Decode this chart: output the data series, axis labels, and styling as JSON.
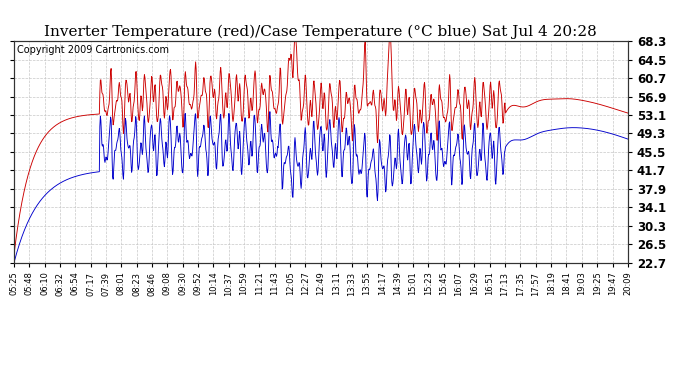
{
  "title": "Inverter Temperature (red)/Case Temperature (°C blue) Sat Jul 4 20:28",
  "copyright": "Copyright 2009 Cartronics.com",
  "yticks": [
    22.7,
    26.5,
    30.3,
    34.1,
    37.9,
    41.7,
    45.5,
    49.3,
    53.1,
    56.9,
    60.7,
    64.5,
    68.3
  ],
  "ymin": 22.7,
  "ymax": 68.3,
  "xtick_labels": [
    "05:25",
    "05:48",
    "06:10",
    "06:32",
    "06:54",
    "07:17",
    "07:39",
    "08:01",
    "08:23",
    "08:46",
    "09:08",
    "09:30",
    "09:52",
    "10:14",
    "10:37",
    "10:59",
    "11:21",
    "11:43",
    "12:05",
    "12:27",
    "12:49",
    "13:11",
    "13:33",
    "13:55",
    "14:17",
    "14:39",
    "15:01",
    "15:23",
    "15:45",
    "16:07",
    "16:29",
    "16:51",
    "17:13",
    "17:35",
    "17:57",
    "18:19",
    "18:41",
    "19:03",
    "19:25",
    "19:47",
    "20:09"
  ],
  "bg_color": "#ffffff",
  "plot_bg_color": "#ffffff",
  "grid_color": "#c8c8c8",
  "red_color": "#cc0000",
  "blue_color": "#0000cc",
  "title_fontsize": 11,
  "copyright_fontsize": 7
}
